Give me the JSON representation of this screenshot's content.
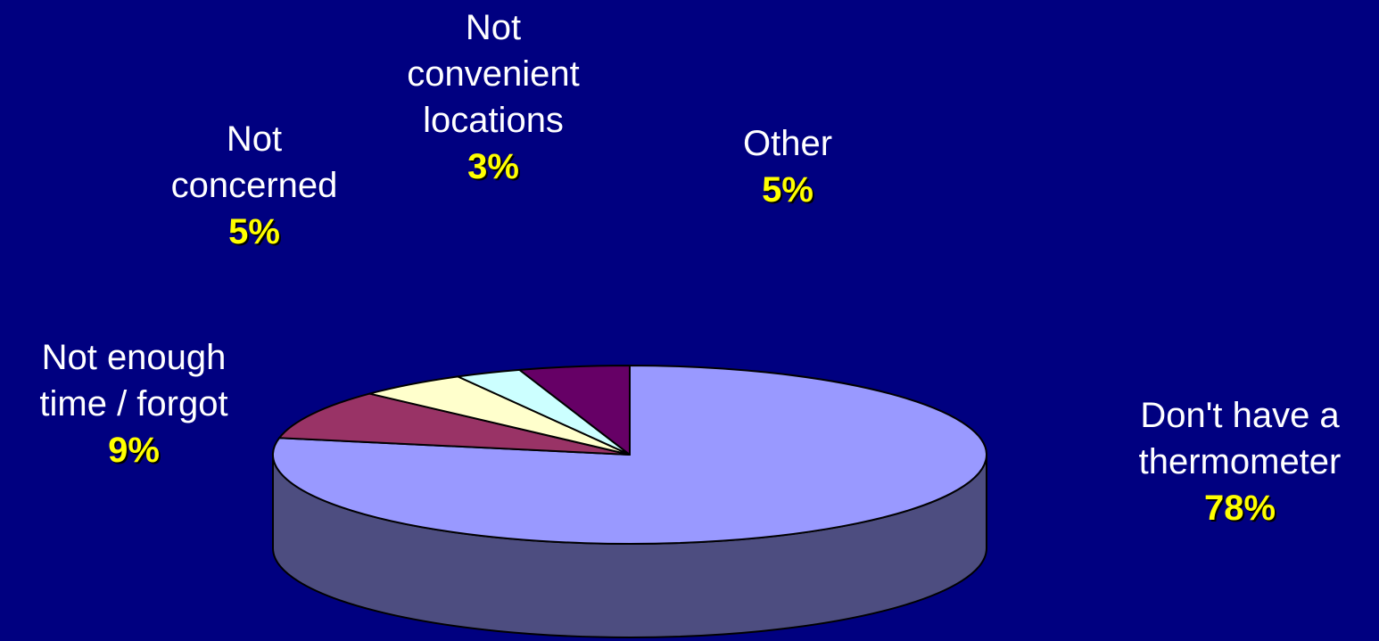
{
  "chart_data": {
    "type": "pie",
    "categories": [
      "Don't have a thermometer",
      "Not enough time / forgot",
      "Not concerned",
      "Not convenient locations",
      "Other"
    ],
    "values": [
      78,
      9,
      5,
      3,
      5
    ],
    "value_labels": [
      "78%",
      "9%",
      "5%",
      "3%",
      "5%"
    ],
    "colors": [
      "#9999ff",
      "#993366",
      "#ffffcc",
      "#ccffff",
      "#660066"
    ],
    "background": "#000080"
  }
}
